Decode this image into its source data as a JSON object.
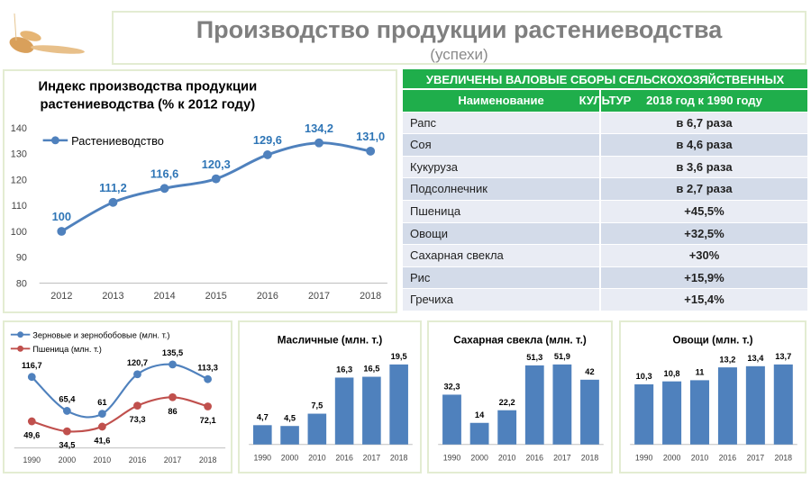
{
  "header": {
    "title": "Производство продукции растениеводства",
    "subtitle": "(успехи)"
  },
  "table": {
    "title": "УВЕЛИЧЕНЫ ВАЛОВЫЕ СБОРЫ СЕЛЬСКОХОЗЯЙСТВЕННЫХ КУЛЬТУР",
    "columns": [
      "Наименование",
      "2018 год к 1990 году"
    ],
    "rows": [
      [
        "Рапс",
        "в 6,7 раза"
      ],
      [
        "Соя",
        "в 4,6 раза"
      ],
      [
        "Кукуруза",
        "в 3,6 раза"
      ],
      [
        "Подсолнечник",
        "в 2,7 раза"
      ],
      [
        "Пшеница",
        "+45,5%"
      ],
      [
        "Овощи",
        "+32,5%"
      ],
      [
        "Сахарная свекла",
        "+30%"
      ],
      [
        "Рис",
        "+15,9%"
      ],
      [
        "Гречиха",
        "+15,4%"
      ]
    ]
  },
  "colors": {
    "blue": "#4f81bd",
    "red": "#c0504d",
    "green": "#1fae4b",
    "label_blue": "#2e75b6"
  },
  "chart_data": [
    {
      "type": "line",
      "title": "Индекс производства продукции растениеводства (% к 2012 году)",
      "title_lines": [
        "Индекс производства продукции",
        "растениеводства (% к 2012 году)"
      ],
      "categories": [
        "2012",
        "2013",
        "2014",
        "2015",
        "2016",
        "2017",
        "2018"
      ],
      "series": [
        {
          "name": "Растениеводство",
          "values": [
            100,
            111.2,
            116.6,
            120.3,
            129.6,
            134.2,
            131.0
          ],
          "labels": [
            "100",
            "111,2",
            "116,6",
            "120,3",
            "129,6",
            "134,2",
            "131,0"
          ]
        }
      ],
      "ylim": [
        80,
        140
      ],
      "yticks": [
        "80",
        "90",
        "100",
        "110",
        "120",
        "130",
        "140"
      ],
      "legend": "top-left",
      "grid": false
    },
    {
      "type": "line",
      "title": "",
      "categories": [
        "1990",
        "2000",
        "2010",
        "2016",
        "2017",
        "2018"
      ],
      "series": [
        {
          "name": "Зерновые и зернобобовые (млн. т.)",
          "values": [
            116.7,
            65.4,
            61,
            120.7,
            135.5,
            113.3
          ],
          "labels": [
            "116,7",
            "65,4",
            "61",
            "120,7",
            "135,5",
            "113,3"
          ]
        },
        {
          "name": "Пшеница (млн. т.)",
          "values": [
            49.6,
            34.5,
            41.6,
            73.3,
            86,
            72.1
          ],
          "labels": [
            "49,6",
            "34,5",
            "41,6",
            "73,3",
            "86",
            "72,1"
          ]
        }
      ],
      "legend": "top-left"
    },
    {
      "type": "bar",
      "title": "Масличные (млн. т.)",
      "categories": [
        "1990",
        "2000",
        "2010",
        "2016",
        "2017",
        "2018"
      ],
      "values": [
        4.7,
        4.5,
        7.5,
        16.3,
        16.5,
        19.5
      ],
      "labels": [
        "4,7",
        "4,5",
        "7,5",
        "16,3",
        "16,5",
        "19,5"
      ]
    },
    {
      "type": "bar",
      "title": "Сахарная свекла (млн. т.)",
      "categories": [
        "1990",
        "2000",
        "2010",
        "2016",
        "2017",
        "2018"
      ],
      "values": [
        32.3,
        14,
        22.2,
        51.3,
        51.9,
        42
      ],
      "labels": [
        "32,3",
        "14",
        "22,2",
        "51,3",
        "51,9",
        "42"
      ]
    },
    {
      "type": "bar",
      "title": "Овощи (млн. т.)",
      "categories": [
        "1990",
        "2000",
        "2010",
        "2016",
        "2017",
        "2018"
      ],
      "values": [
        10.3,
        10.8,
        11,
        13.2,
        13.4,
        13.7
      ],
      "labels": [
        "10,3",
        "10,8",
        "11",
        "13,2",
        "13,4",
        "13,7"
      ]
    }
  ]
}
